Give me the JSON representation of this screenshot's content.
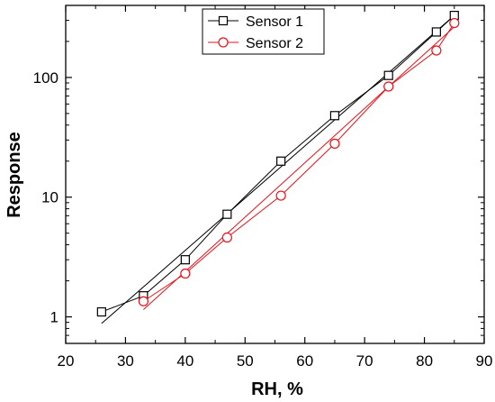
{
  "chart_data": {
    "type": "scatter",
    "title": "",
    "xlabel": "RH, %",
    "ylabel": "Response",
    "xlim": [
      20,
      90
    ],
    "ylim": [
      0.6,
      400
    ],
    "yscale": "log",
    "x_ticks": [
      20,
      30,
      40,
      50,
      60,
      70,
      80,
      90
    ],
    "x_tick_labels": [
      "20",
      "30",
      "40",
      "50",
      "60",
      "70",
      "80",
      "90"
    ],
    "y_ticks": [
      1,
      10,
      100
    ],
    "y_tick_labels": [
      "1",
      "10",
      "100"
    ],
    "grid": false,
    "legend_position": "top-center",
    "series": [
      {
        "name": "Sensor 1",
        "marker": "square",
        "color": "#000000",
        "x": [
          26,
          33,
          40,
          47,
          56,
          65,
          74,
          82,
          85
        ],
        "y": [
          1.1,
          1.5,
          3.0,
          7.2,
          20,
          48,
          104,
          240,
          330
        ],
        "fit": {
          "x": [
            26,
            85
          ],
          "y": [
            0.88,
            330
          ]
        }
      },
      {
        "name": "Sensor 2",
        "marker": "circle",
        "color": "#e8111a",
        "x": [
          33,
          40,
          47,
          56,
          65,
          74,
          82,
          85
        ],
        "y": [
          1.35,
          2.3,
          4.6,
          10.3,
          28,
          84,
          168,
          285
        ],
        "fit": {
          "x": [
            33,
            85
          ],
          "y": [
            1.15,
            265
          ]
        }
      }
    ]
  }
}
